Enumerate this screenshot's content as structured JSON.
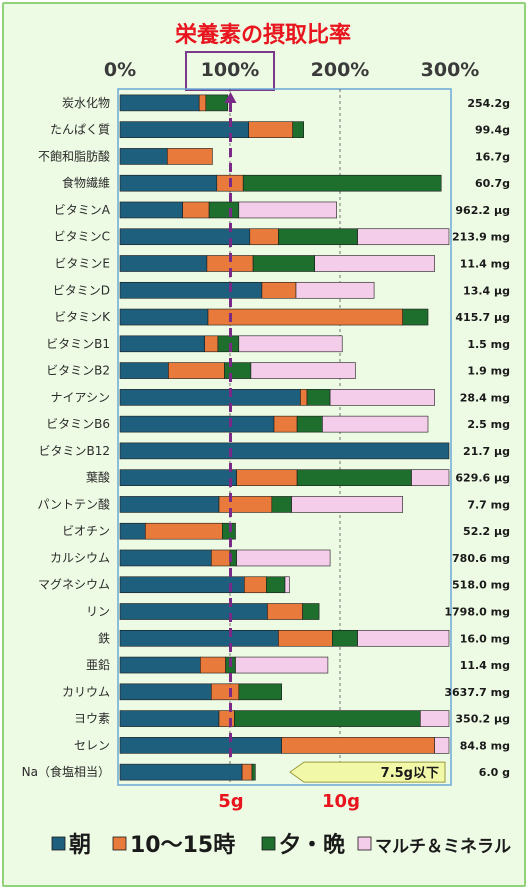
{
  "chart_data": {
    "type": "bar",
    "stacked": true,
    "orientation": "horizontal",
    "title": "栄養素の摂取比率",
    "x_ticks": [
      "0%",
      "100%",
      "200%",
      "300%"
    ],
    "xlim": [
      0,
      300
    ],
    "highlight_tick": "100%",
    "series": [
      {
        "name": "朝",
        "color": "#1f5f7e"
      },
      {
        "name": "10～15時",
        "color": "#e87b3b"
      },
      {
        "name": "夕・晩",
        "color": "#1e6e2e"
      },
      {
        "name": "マルチ＆ミネラル",
        "color": "#f3cde9"
      }
    ],
    "rows": [
      {
        "category": "炭水化物",
        "value_label": "254.2g",
        "segments": [
          72,
          6,
          20,
          0
        ]
      },
      {
        "category": "たんぱく質",
        "value_label": "99.4g",
        "segments": [
          117,
          40,
          10,
          0
        ]
      },
      {
        "category": "不飽和脂肪酸",
        "value_label": "16.7g",
        "segments": [
          43,
          41,
          0,
          0
        ]
      },
      {
        "category": "食物繊維",
        "value_label": "60.7g",
        "segments": [
          88,
          24,
          180,
          0
        ]
      },
      {
        "category": "ビタミンA",
        "value_label": "962.2 μg",
        "segments": [
          57,
          24,
          27,
          89
        ]
      },
      {
        "category": "ビタミンC",
        "value_label": "213.9 mg",
        "segments": [
          118,
          26,
          72,
          88
        ]
      },
      {
        "category": "ビタミンE",
        "value_label": "11.4 mg",
        "segments": [
          79,
          42,
          56,
          109
        ]
      },
      {
        "category": "ビタミンD",
        "value_label": "13.4 μg",
        "segments": [
          129,
          31,
          0,
          71
        ]
      },
      {
        "category": "ビタミンK",
        "value_label": "415.7 μg",
        "segments": [
          80,
          177,
          23,
          0
        ]
      },
      {
        "category": "ビタミンB1",
        "value_label": "1.5 mg",
        "segments": [
          77,
          12,
          19,
          94
        ]
      },
      {
        "category": "ビタミンB2",
        "value_label": "1.9 mg",
        "segments": [
          44,
          51,
          24,
          95
        ]
      },
      {
        "category": "ナイアシン",
        "value_label": "28.4 mg",
        "segments": [
          164,
          6,
          21,
          95
        ]
      },
      {
        "category": "ビタミンB6",
        "value_label": "2.5 mg",
        "segments": [
          140,
          21,
          23,
          96
        ]
      },
      {
        "category": "ビタミンB12",
        "value_label": "21.7 μg",
        "segments": [
          304,
          0,
          0,
          0
        ]
      },
      {
        "category": "葉酸",
        "value_label": "629.6 μg",
        "segments": [
          106,
          55,
          104,
          40
        ]
      },
      {
        "category": "パントテン酸",
        "value_label": "7.7 mg",
        "segments": [
          90,
          48,
          18,
          101
        ]
      },
      {
        "category": "ビオチン",
        "value_label": "52.2 μg",
        "segments": [
          23,
          70,
          12,
          0
        ]
      },
      {
        "category": "カルシウム",
        "value_label": "780.6 mg",
        "segments": [
          83,
          17,
          6,
          85
        ]
      },
      {
        "category": "マグネシウム",
        "value_label": "518.0 mg",
        "segments": [
          113,
          20,
          17,
          4
        ]
      },
      {
        "category": "リン",
        "value_label": "1798.0 mg",
        "segments": [
          134,
          32,
          15,
          0
        ]
      },
      {
        "category": "鉄",
        "value_label": "16.0 mg",
        "segments": [
          144,
          49,
          23,
          91
        ]
      },
      {
        "category": "亜鉛",
        "value_label": "11.4 mg",
        "segments": [
          73,
          23,
          9,
          84
        ]
      },
      {
        "category": "カリウム",
        "value_label": "3637.7 mg",
        "segments": [
          83,
          25,
          39,
          0
        ]
      },
      {
        "category": "ヨウ素",
        "value_label": "350.2 μg",
        "segments": [
          90,
          14,
          169,
          32
        ]
      },
      {
        "category": "セレン",
        "value_label": "84.8 mg",
        "segments": [
          147,
          139,
          0,
          18
        ]
      },
      {
        "category": "Na（食塩相当）",
        "value_label": "6.0 g",
        "segments": [
          111,
          9,
          3,
          0
        ]
      }
    ],
    "na_scale_labels": [
      "5g",
      "10g"
    ],
    "na_note": "7.5g以下"
  }
}
